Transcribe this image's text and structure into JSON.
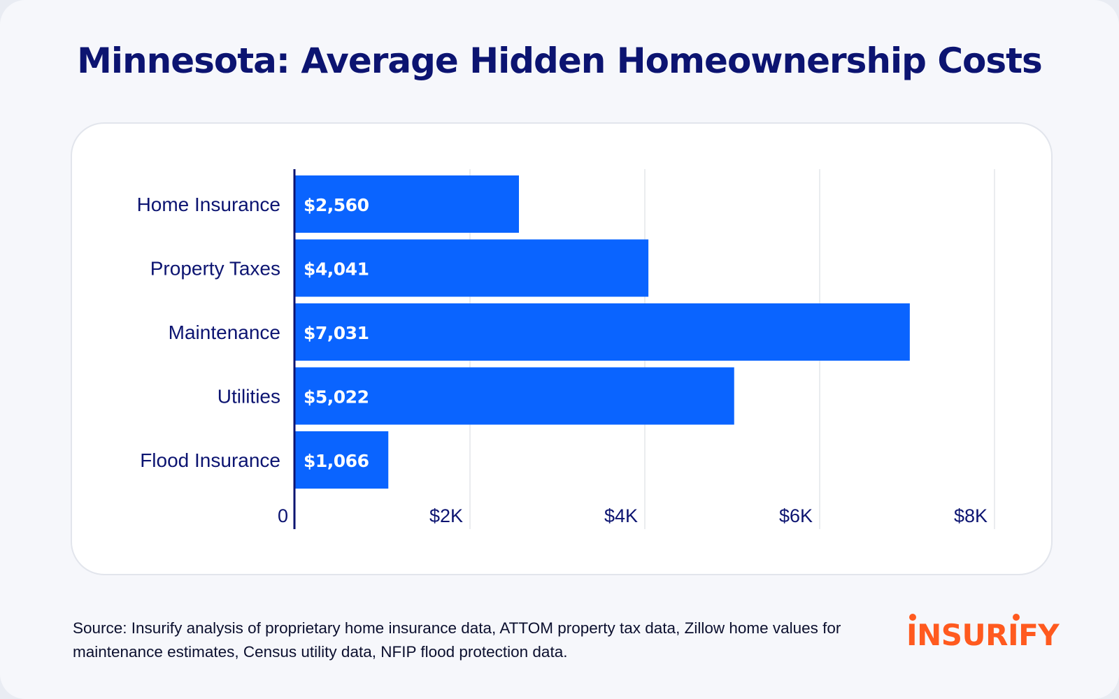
{
  "title": "Minnesota: Average Hidden Homeownership Costs",
  "source": "Source: Insurify analysis of proprietary home insurance data, ATTOM property tax data, Zillow home values for maintenance estimates, Census utility data, NFIP flood protection data.",
  "logo": {
    "text": "INSURIFY",
    "color": "#ff5a1f"
  },
  "colors": {
    "bar": "#0a64ff",
    "title": "#0c1471",
    "axis": "#0c1471",
    "grid": "#e3e5ea"
  },
  "chart_data": {
    "type": "bar",
    "orientation": "horizontal",
    "title": "Minnesota: Average Hidden Homeownership Costs",
    "categories": [
      "Home Insurance",
      "Property Taxes",
      "Maintenance",
      "Utilities",
      "Flood Insurance"
    ],
    "values": [
      2560,
      4041,
      7031,
      5022,
      1066
    ],
    "value_labels": [
      "$2,560",
      "$4,041",
      "$7,031",
      "$5,022",
      "$1,066"
    ],
    "xlim": [
      0,
      8000
    ],
    "x_ticks": [
      0,
      2000,
      4000,
      6000,
      8000
    ],
    "x_tick_labels": [
      "0",
      "$2K",
      "$4K",
      "$6K",
      "$8K"
    ],
    "grid": true,
    "xlabel": "",
    "ylabel": "",
    "legend": "none"
  }
}
